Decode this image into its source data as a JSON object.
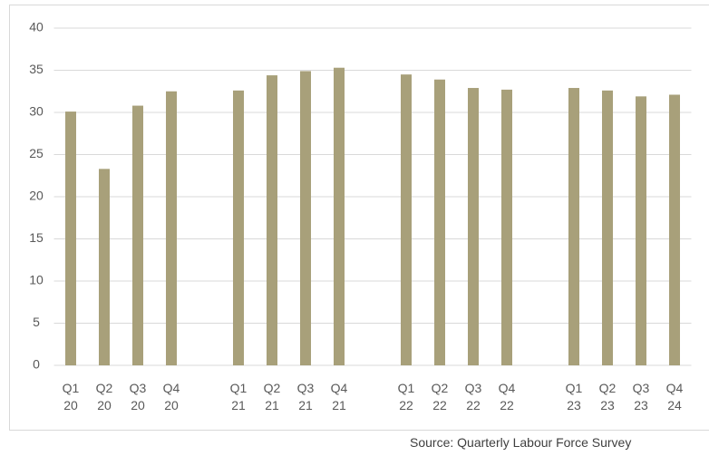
{
  "chart_data": {
    "type": "bar",
    "categories": [
      "Q1 20",
      "Q2 20",
      "Q3 20",
      "Q4 20",
      null,
      "Q1 21",
      "Q2 21",
      "Q3 21",
      "Q4 21",
      null,
      "Q1 22",
      "Q2 22",
      "Q3 22",
      "Q4 22",
      null,
      "Q1 23",
      "Q2 23",
      "Q3 23",
      "Q4 24"
    ],
    "values": [
      30.1,
      23.3,
      30.8,
      32.5,
      null,
      32.6,
      34.4,
      34.9,
      35.3,
      null,
      34.5,
      33.9,
      32.9,
      32.7,
      null,
      32.9,
      32.6,
      31.9,
      32.1
    ],
    "color": "#a8a07a",
    "ylim": [
      0,
      40
    ],
    "yticks": [
      0,
      5,
      10,
      15,
      20,
      25,
      30,
      35,
      40
    ],
    "grid": true,
    "source": "Source: Quarterly Labour Force Survey"
  }
}
